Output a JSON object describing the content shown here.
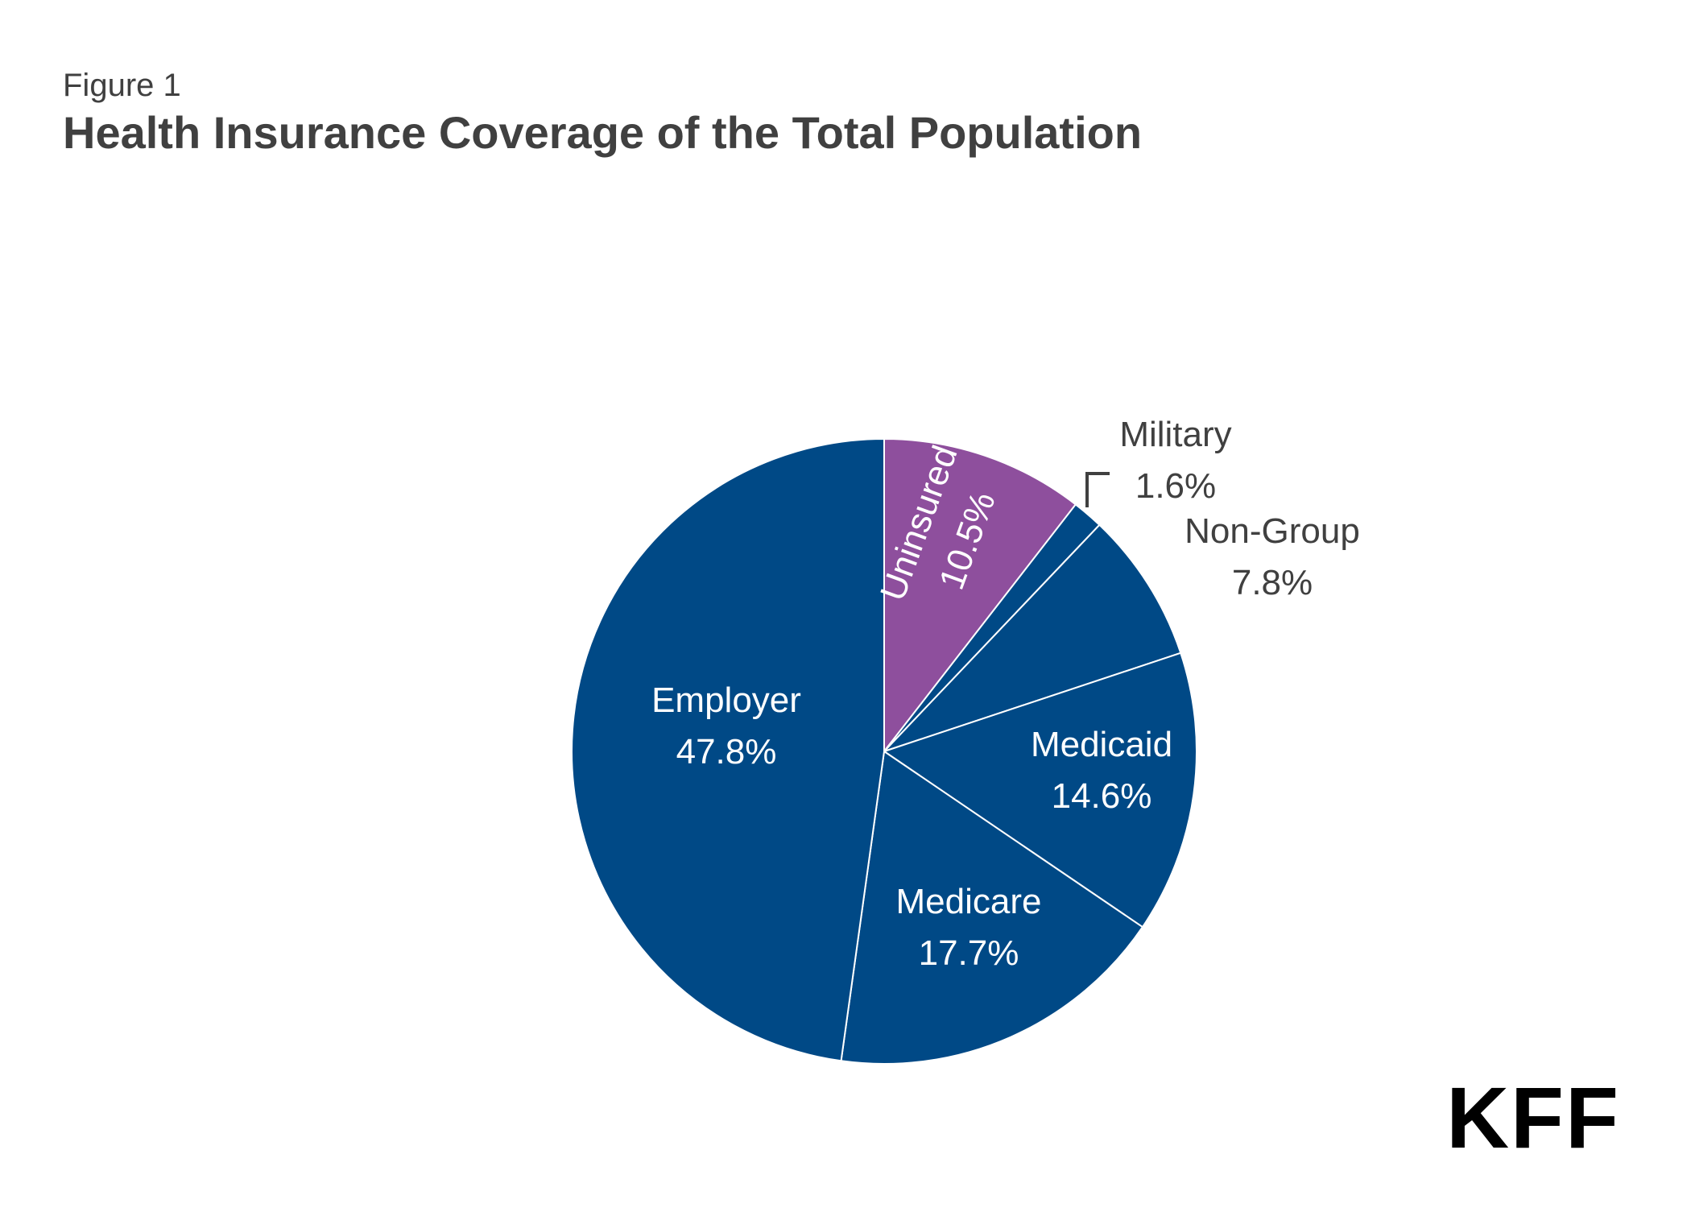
{
  "figure_label": "Figure 1",
  "logo_text": "KFF",
  "chart_data": {
    "type": "pie",
    "title": "Health Insurance Coverage of the Total Population",
    "start_angle_deg": 0,
    "direction": "clockwise",
    "slices": [
      {
        "label": "Uninsured",
        "value": 10.5,
        "value_label": "10.5%",
        "color": "#8E4F9D",
        "text_color": "#ffffff",
        "label_position": "inside-rotated"
      },
      {
        "label": "Military",
        "value": 1.6,
        "value_label": "1.6%",
        "color": "#004986",
        "text_color": "#404040",
        "label_position": "outside-leader"
      },
      {
        "label": "Non-Group",
        "value": 7.8,
        "value_label": "7.8%",
        "color": "#004986",
        "text_color": "#404040",
        "label_position": "outside"
      },
      {
        "label": "Medicaid",
        "value": 14.6,
        "value_label": "14.6%",
        "color": "#004986",
        "text_color": "#ffffff",
        "label_position": "inside"
      },
      {
        "label": "Medicare",
        "value": 17.7,
        "value_label": "17.7%",
        "color": "#004986",
        "text_color": "#ffffff",
        "label_position": "inside"
      },
      {
        "label": "Employer",
        "value": 47.8,
        "value_label": "47.8%",
        "color": "#004986",
        "text_color": "#ffffff",
        "label_position": "inside"
      }
    ],
    "slice_border_color": "#ffffff"
  }
}
